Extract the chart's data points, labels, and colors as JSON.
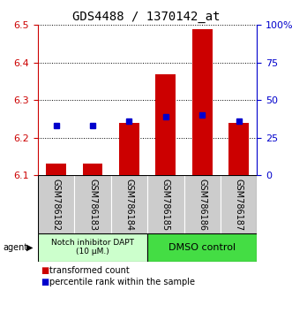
{
  "title": "GDS4488 / 1370142_at",
  "samples": [
    "GSM786182",
    "GSM786183",
    "GSM786184",
    "GSM786185",
    "GSM786186",
    "GSM786187"
  ],
  "red_values": [
    6.13,
    6.13,
    6.24,
    6.37,
    6.49,
    6.24
  ],
  "blue_values": [
    6.232,
    6.232,
    6.245,
    6.256,
    6.26,
    6.245
  ],
  "ylim_lo": 6.1,
  "ylim_hi": 6.5,
  "yticks_left": [
    6.1,
    6.2,
    6.3,
    6.4,
    6.5
  ],
  "yticks_right": [
    0,
    25,
    50,
    75,
    100
  ],
  "group1_indices": [
    0,
    1,
    2
  ],
  "group2_indices": [
    3,
    4,
    5
  ],
  "group1_label": "Notch inhibitor DAPT\n(10 μM.)",
  "group2_label": "DMSO control",
  "group1_bg": "#ccffcc",
  "group2_bg": "#44dd44",
  "sample_box_bg": "#cccccc",
  "red_color": "#cc0000",
  "blue_color": "#0000cc",
  "bar_width": 0.55,
  "title_fontsize": 10,
  "axis_fontsize": 8,
  "label_fontsize": 7,
  "legend_fontsize": 7
}
